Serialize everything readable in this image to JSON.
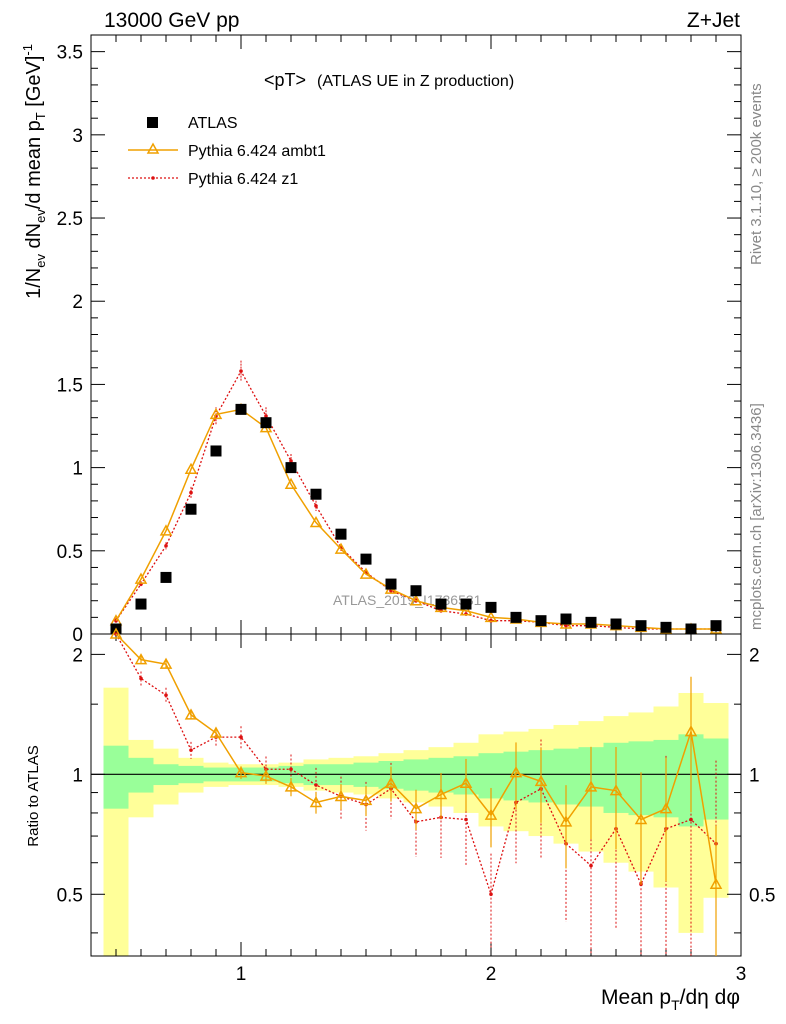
{
  "header": {
    "left": "13000 GeV pp",
    "right": "Z+Jet"
  },
  "side_labels": {
    "rivet": "Rivet 3.1.10, ≥ 200k events",
    "mcplots": "mcplots.cern.ch [arXiv:1306.3436]"
  },
  "watermark": "ATLAS_2019_I1736531",
  "top_title": {
    "main": "<pT>",
    "sub": "(ATLAS UE in Z production)"
  },
  "legend": {
    "atlas": "ATLAS",
    "ambt1": "Pythia 6.424 ambt1",
    "z1": "Pythia 6.424 z1"
  },
  "axes": {
    "top_ylabel": "1/N_ev dN_ev/d mean p_T [GeV]^-1",
    "bottom_ylabel": "Ratio to ATLAS",
    "xlabel": "Mean p_T/dη dφ"
  },
  "colors": {
    "atlas": "#000000",
    "ambt1": "#f0a000",
    "z1": "#dd1010",
    "band_inner": "#99ff99",
    "band_outer": "#ffff99"
  },
  "chart_data": [
    {
      "type": "scatter",
      "panel": "main",
      "xlim": [
        0.4,
        3.0
      ],
      "ylim": [
        0,
        3.6
      ],
      "yticks": [
        0,
        0.5,
        1,
        1.5,
        2,
        2.5,
        3,
        3.5
      ],
      "yticklabels": [
        "0",
        "0.5",
        "1",
        "1.5",
        "2",
        "2.5",
        "3",
        "3.5"
      ],
      "xticks": [
        1,
        2,
        3
      ],
      "xticklabels": [
        "1",
        "2",
        "3"
      ],
      "x": [
        0.5,
        0.6,
        0.7,
        0.8,
        0.9,
        1.0,
        1.1,
        1.2,
        1.3,
        1.4,
        1.5,
        1.6,
        1.7,
        1.8,
        1.9,
        2.0,
        2.1,
        2.2,
        2.3,
        2.4,
        2.5,
        2.6,
        2.7,
        2.8,
        2.9
      ],
      "series": [
        {
          "name": "ATLAS",
          "values": [
            0.03,
            0.18,
            0.34,
            0.75,
            1.1,
            1.35,
            1.27,
            1.0,
            0.84,
            0.6,
            0.45,
            0.3,
            0.26,
            0.18,
            0.18,
            0.16,
            0.1,
            0.08,
            0.09,
            0.07,
            0.06,
            0.05,
            0.04,
            0.03,
            0.05
          ]
        },
        {
          "name": "Pythia 6.424 ambt1",
          "values": [
            0.08,
            0.33,
            0.62,
            0.99,
            1.32,
            1.35,
            1.24,
            0.9,
            0.67,
            0.51,
            0.36,
            0.27,
            0.2,
            0.16,
            0.14,
            0.1,
            0.09,
            0.07,
            0.06,
            0.06,
            0.05,
            0.04,
            0.03,
            0.03,
            0.03
          ]
        },
        {
          "name": "Pythia 6.424 z1",
          "values": [
            0.08,
            0.3,
            0.53,
            0.85,
            1.31,
            1.58,
            1.31,
            1.04,
            0.77,
            0.52,
            0.37,
            0.26,
            0.2,
            0.14,
            0.12,
            0.08,
            0.08,
            0.07,
            0.05,
            0.05,
            0.04,
            0.03,
            0.03,
            0.03,
            0.03
          ]
        }
      ]
    },
    {
      "type": "line",
      "panel": "ratio",
      "xlim": [
        0.4,
        3.0
      ],
      "ylim": [
        0.35,
        2.25
      ],
      "yticks": [
        0.5,
        1,
        2
      ],
      "yticklabels": [
        "0.5",
        "1",
        "2"
      ],
      "xticks": [
        1,
        2,
        3
      ],
      "xticklabels": [
        "1",
        "2",
        "3"
      ],
      "x": [
        0.5,
        0.6,
        0.7,
        0.8,
        0.9,
        1.0,
        1.1,
        1.2,
        1.3,
        1.4,
        1.5,
        1.6,
        1.7,
        1.8,
        1.9,
        2.0,
        2.1,
        2.2,
        2.3,
        2.4,
        2.5,
        2.6,
        2.7,
        2.8,
        2.9
      ],
      "series": [
        {
          "name": "Pythia 6.424 ambt1",
          "values": [
            2.6,
            1.94,
            1.89,
            1.41,
            1.27,
            1.01,
            0.99,
            0.93,
            0.85,
            0.88,
            0.86,
            0.95,
            0.82,
            0.89,
            0.95,
            0.79,
            1.01,
            0.96,
            0.76,
            0.93,
            0.91,
            0.77,
            0.82,
            1.28,
            0.53
          ]
        },
        {
          "name": "Pythia 6.424 z1",
          "values": [
            2.6,
            1.74,
            1.58,
            1.15,
            1.24,
            1.24,
            1.03,
            1.03,
            0.94,
            0.88,
            0.84,
            0.92,
            0.76,
            0.78,
            0.77,
            0.5,
            0.85,
            0.92,
            0.67,
            0.59,
            0.73,
            0.53,
            0.73,
            0.77,
            0.67
          ]
        }
      ],
      "bands": {
        "x_edges": [
          0.45,
          0.55,
          0.65,
          0.75,
          0.85,
          0.95,
          1.05,
          1.15,
          1.25,
          1.35,
          1.45,
          1.55,
          1.65,
          1.75,
          1.85,
          1.95,
          2.05,
          2.15,
          2.25,
          2.35,
          2.45,
          2.55,
          2.65,
          2.75,
          2.85,
          2.95
        ],
        "inner": [
          0.82,
          0.9,
          0.94,
          0.95,
          0.96,
          0.96,
          0.96,
          0.95,
          0.94,
          0.94,
          0.93,
          0.92,
          0.91,
          0.9,
          0.89,
          0.87,
          0.86,
          0.85,
          0.84,
          0.83,
          0.8,
          0.79,
          0.78,
          0.74,
          0.77
        ],
        "outer": [
          0.35,
          0.78,
          0.84,
          0.9,
          0.93,
          0.94,
          0.94,
          0.93,
          0.91,
          0.9,
          0.89,
          0.87,
          0.85,
          0.83,
          0.8,
          0.74,
          0.72,
          0.7,
          0.67,
          0.64,
          0.6,
          0.57,
          0.52,
          0.4,
          0.49
        ]
      }
    }
  ]
}
